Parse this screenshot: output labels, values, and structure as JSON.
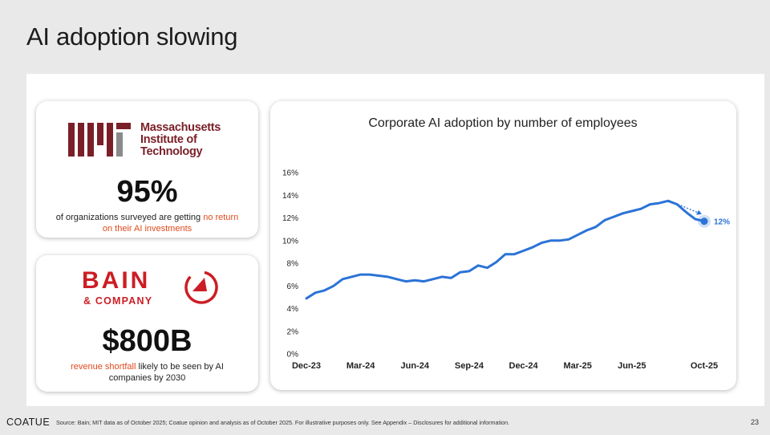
{
  "slide": {
    "title": "AI adoption slowing",
    "page_number": "23"
  },
  "colors": {
    "line": "#2b73d6",
    "highlight": "#e04a1c",
    "mit_maroon": "#7a1f28",
    "bain_red": "#cc1d24"
  },
  "mit_card": {
    "logo_lines": [
      "Massachusetts",
      "Institute of",
      "Technology"
    ],
    "stat": "95%",
    "caption_before": "of organizations surveyed are getting ",
    "caption_highlight": "no return on their AI investments",
    "caption_after": ""
  },
  "bain_card": {
    "logo_word": "BAIN",
    "logo_sub": "& COMPANY",
    "stat": "$800B",
    "caption_highlight": "revenue shortfall",
    "caption_after": " likely to be seen by AI companies by 2030"
  },
  "chart_data": {
    "type": "line",
    "title": "Corporate AI adoption by number of employees",
    "y_ticks": [
      "0%",
      "2%",
      "4%",
      "6%",
      "8%",
      "10%",
      "12%",
      "14%",
      "16%"
    ],
    "ylim": [
      0,
      16
    ],
    "x_ticks": [
      "Dec-23",
      "Mar-24",
      "Jun-24",
      "Sep-24",
      "Dec-24",
      "Mar-25",
      "Jun-25",
      "Oct-25"
    ],
    "x_tick_positions": [
      0,
      6,
      12,
      18,
      24,
      30,
      36,
      44
    ],
    "xlim": [
      0,
      44
    ],
    "grid": false,
    "series": [
      {
        "values": [
          4.9,
          5.4,
          5.6,
          6.0,
          6.6,
          6.8,
          7.0,
          7.0,
          6.9,
          6.8,
          6.6,
          6.4,
          6.5,
          6.4,
          6.6,
          6.8,
          6.7,
          7.2,
          7.3,
          7.8,
          7.6,
          8.1,
          8.8,
          8.8,
          9.1,
          9.4,
          9.8,
          10.0,
          10.0,
          10.1,
          10.5,
          10.9,
          11.2,
          11.8,
          12.1,
          12.4,
          12.6,
          12.8,
          13.2,
          13.3,
          13.5,
          13.2,
          12.5,
          11.9,
          11.7
        ]
      }
    ],
    "end_label": "12%"
  },
  "footer": {
    "logo": "COATUE",
    "source": "Source: Bain; MIT data as of October 2025; Coatue opinion and analysis as of October 2025. For illustrative purposes only.  See Appendix – Disclosures for additional information."
  }
}
